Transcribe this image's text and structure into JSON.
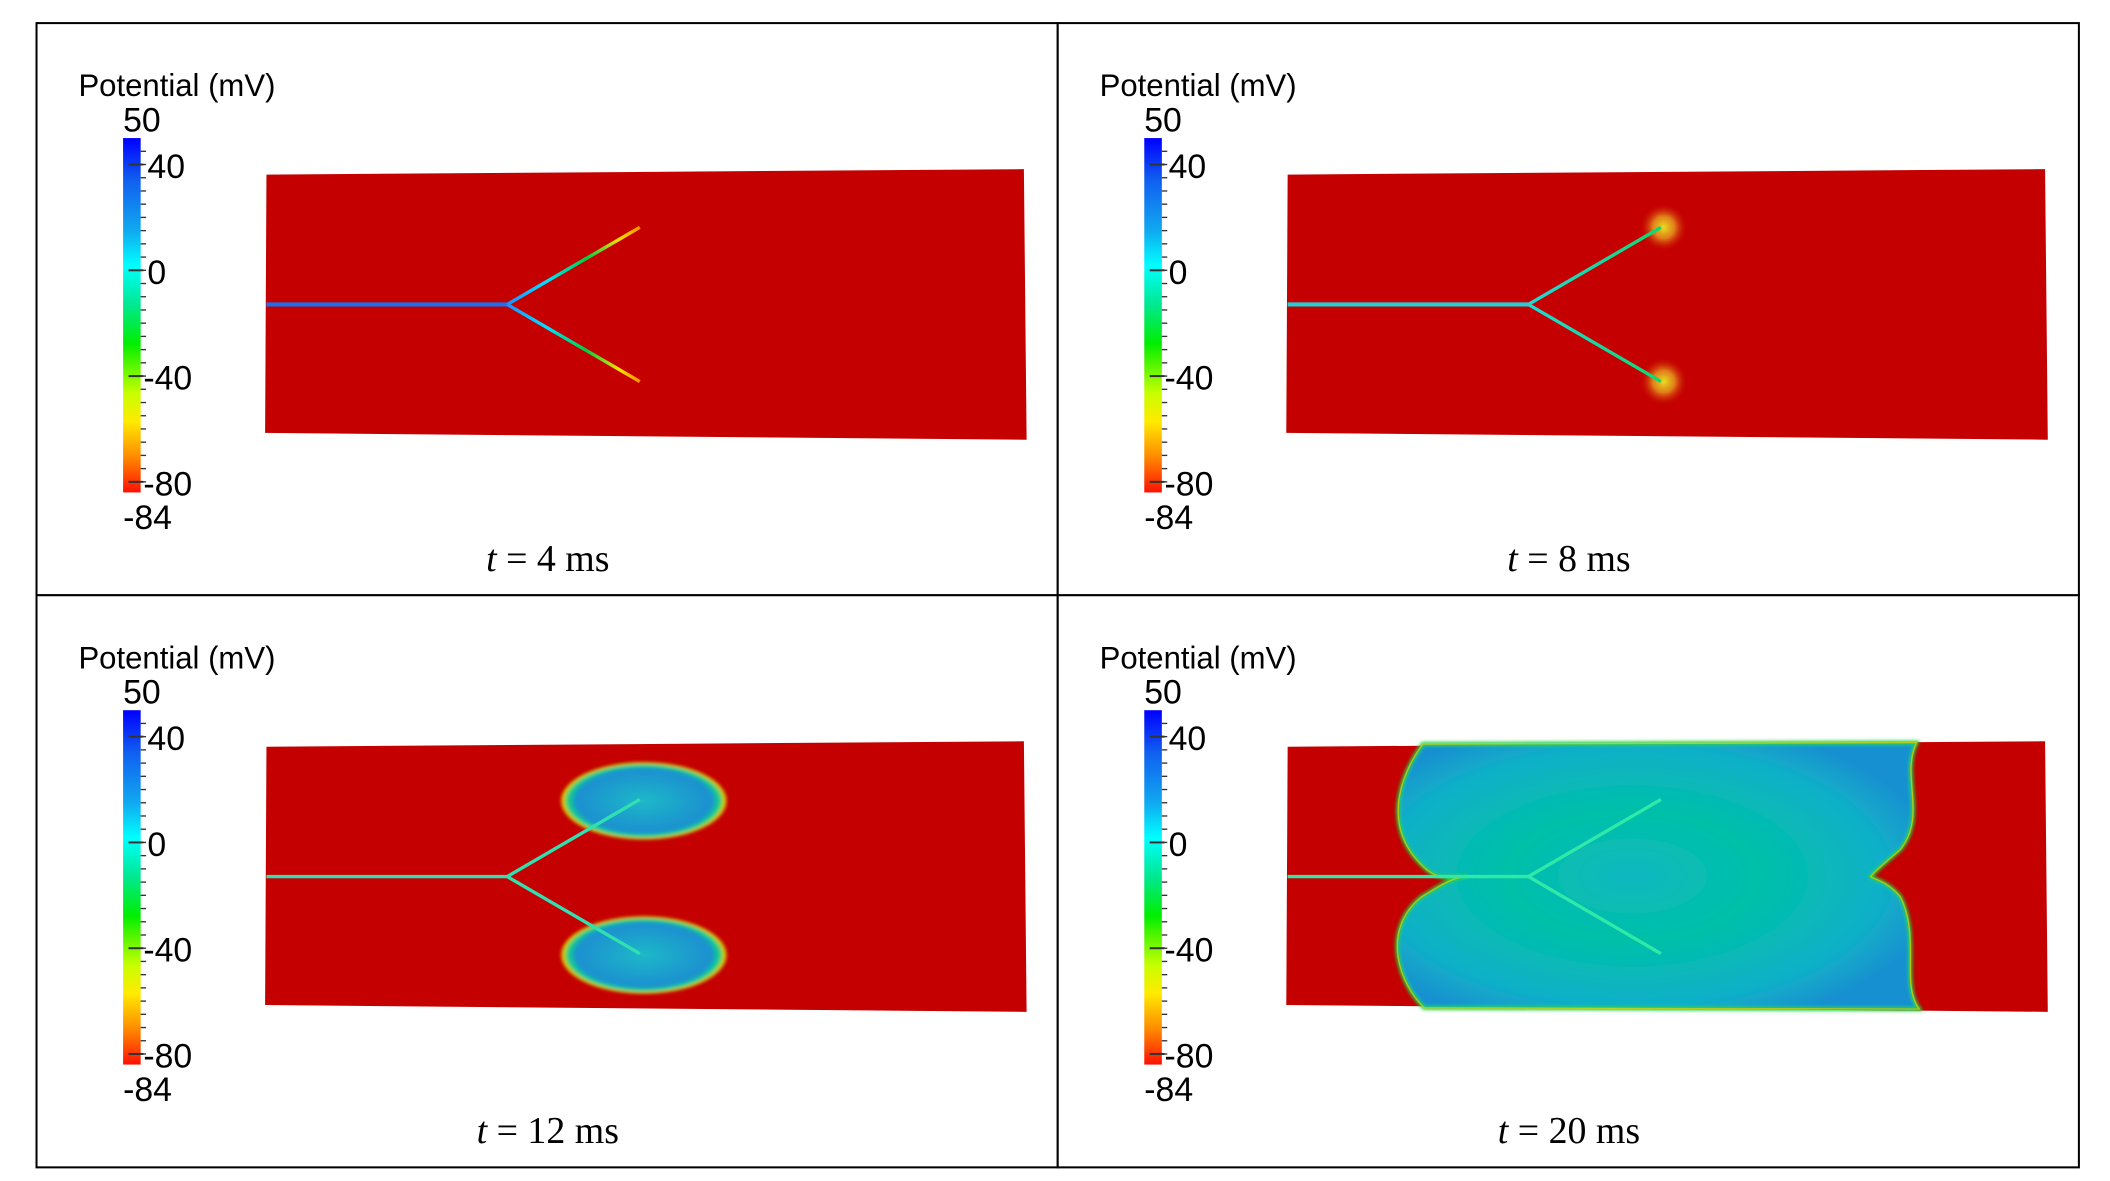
{
  "colorbar": {
    "title": "Potential (mV)",
    "min": -84,
    "max": 50,
    "max_label": "50",
    "min_label": "-84",
    "ticks": [
      {
        "value": 40,
        "label": "40"
      },
      {
        "value": 0,
        "label": "0"
      },
      {
        "value": -40,
        "label": "-40"
      },
      {
        "value": -80,
        "label": "-80"
      }
    ],
    "colormap": [
      "#0000ff",
      "#1e90ff",
      "#00ffff",
      "#00ff60",
      "#00e000",
      "#ffff00",
      "#ff9000",
      "#ff0000"
    ]
  },
  "colors": {
    "resting": "#c40000",
    "wavefront": "#00c8b0"
  },
  "panels": [
    {
      "caption_var": "t",
      "caption_rest": " = 4 ms",
      "time_ms": 4
    },
    {
      "caption_var": "t",
      "caption_rest": " = 8 ms",
      "time_ms": 8
    },
    {
      "caption_var": "t",
      "caption_rest": " = 12 ms",
      "time_ms": 12
    },
    {
      "caption_var": "t",
      "caption_rest": " = 20 ms",
      "time_ms": 20
    }
  ]
}
